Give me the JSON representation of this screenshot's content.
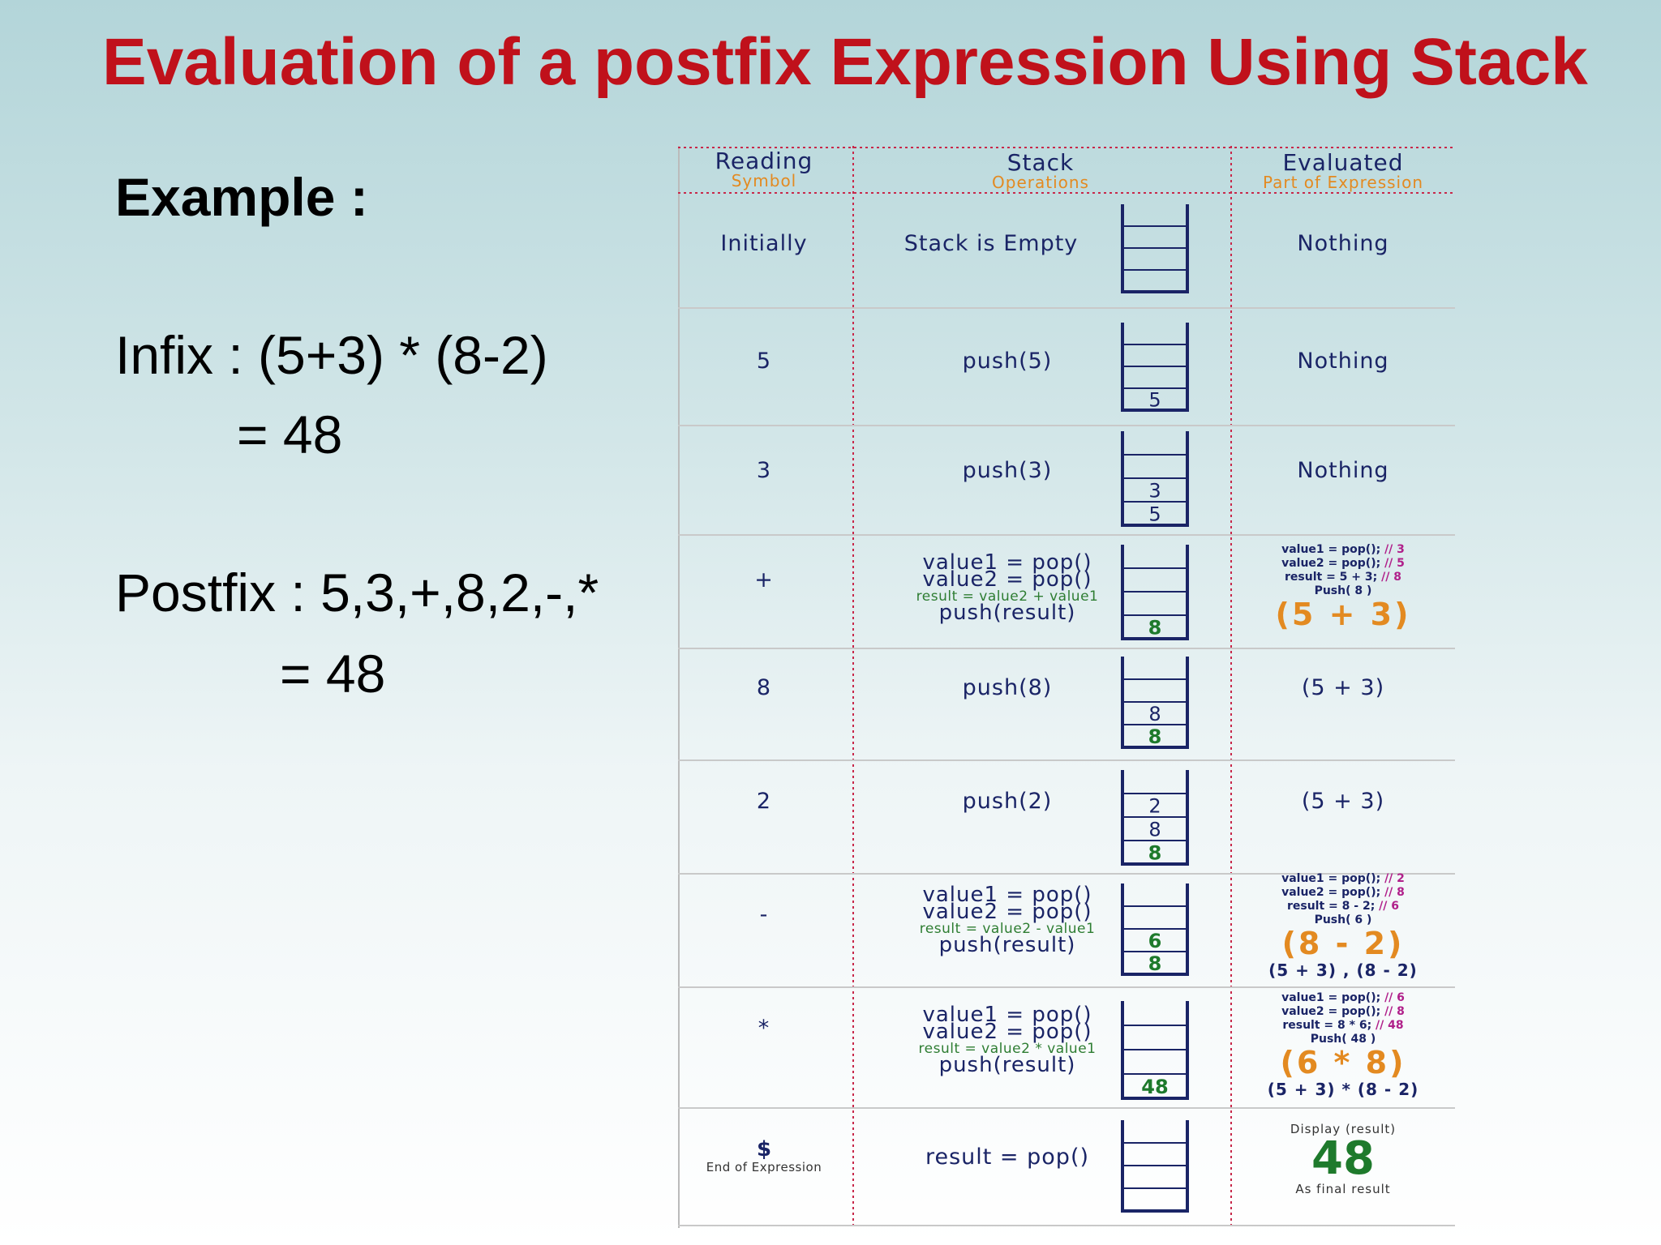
{
  "title": "Evaluation of a postfix Expression Using Stack",
  "left": {
    "example": "Example :",
    "infix": "Infix : (5+3) * (8-2)",
    "infix_result": "= 48",
    "postfix": "Postfix : 5,3,+,8,2,-,*",
    "postfix_result": "= 48"
  },
  "colors": {
    "title": "#c0111b",
    "navy": "#1a2466",
    "orange": "#e38a21",
    "green": "#1e7a2c",
    "pink": "#b0208a"
  },
  "table": {
    "headers": [
      {
        "main": "Reading",
        "sub": "Symbol"
      },
      {
        "main": "Stack",
        "sub": "Operations"
      },
      {
        "main": "Evaluated",
        "sub": "Part of Expression"
      }
    ],
    "rows": [
      {
        "symbol": "Initially",
        "op": "Stack is Empty",
        "stack": [],
        "eval": "Nothing"
      },
      {
        "symbol": "5",
        "op": "push(5)",
        "stack": [
          "5"
        ],
        "eval": "Nothing"
      },
      {
        "symbol": "3",
        "op": "push(3)",
        "stack": [
          "5",
          "3"
        ],
        "eval": "Nothing"
      },
      {
        "symbol": "+",
        "op_lines": [
          "value1 = pop()",
          "value2 = pop()",
          "result = value2 + value1",
          "push(result)"
        ],
        "stack": [
          "8"
        ],
        "eval_code": [
          "value1 = pop(); // 3",
          "value2 = pop(); // 5",
          "result = 5 + 3; // 8",
          "Push( 8 )"
        ],
        "eval_big": "(5 + 3)"
      },
      {
        "symbol": "8",
        "op": "push(8)",
        "stack": [
          "8",
          "8"
        ],
        "eval": "(5 + 3)"
      },
      {
        "symbol": "2",
        "op": "push(2)",
        "stack": [
          "8",
          "8",
          "2"
        ],
        "eval": "(5 + 3)"
      },
      {
        "symbol": "-",
        "op_lines": [
          "value1 = pop()",
          "value2 = pop()",
          "result = value2 - value1",
          "push(result)"
        ],
        "stack": [
          "8",
          "6"
        ],
        "eval_code": [
          "value1 = pop(); // 2",
          "value2 = pop(); // 8",
          "result = 8 - 2; // 6",
          "Push( 6 )"
        ],
        "eval_big": "(8 - 2)",
        "eval_below": "(5 + 3) , (8 - 2)"
      },
      {
        "symbol": "*",
        "op_lines": [
          "value1 = pop()",
          "value2 = pop()",
          "result = value2 * value1",
          "push(result)"
        ],
        "stack": [
          "48"
        ],
        "eval_code": [
          "value1 = pop(); // 6",
          "value2 = pop(); // 8",
          "result = 8 * 6; // 48",
          "Push( 48 )"
        ],
        "eval_big": "(6 * 8)",
        "eval_below": "(5 + 3) * (8 - 2)"
      },
      {
        "symbol": "$",
        "symbol_sub": "End of Expression",
        "op": "result = pop()",
        "stack": [],
        "eval_top": "Display (result)",
        "eval_final": "48",
        "eval_bottom": "As final result"
      }
    ]
  }
}
